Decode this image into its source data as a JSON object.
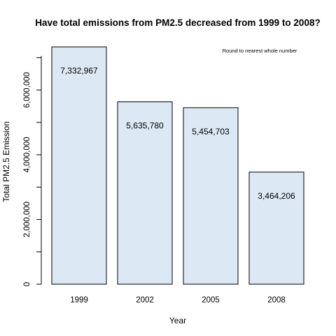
{
  "chart_data": {
    "type": "bar",
    "title": "Have total emissions from PM2.5 decreased from 1999 to 2008?",
    "annotation": "Round to nearest whole number",
    "xlabel": "Year",
    "ylabel": "Total PM2.5 Emission",
    "categories": [
      "1999",
      "2002",
      "2005",
      "2008"
    ],
    "values": [
      7332967,
      5635780,
      5454703,
      3464206
    ],
    "value_labels": [
      "7,332,967",
      "5,635,780",
      "5,454,703",
      "3,464,206"
    ],
    "ylim": [
      0,
      7332967
    ],
    "y_ticks": [
      0,
      1000000,
      2000000,
      3000000,
      4000000,
      5000000,
      6000000,
      7000000
    ],
    "y_tick_labels": [
      "0",
      "",
      "2,000,000",
      "",
      "4,000,000",
      "",
      "6,000,000",
      ""
    ],
    "bar_fill": "#dde8f5",
    "bar_stroke": "#000000",
    "grid": false,
    "legend": "none"
  }
}
